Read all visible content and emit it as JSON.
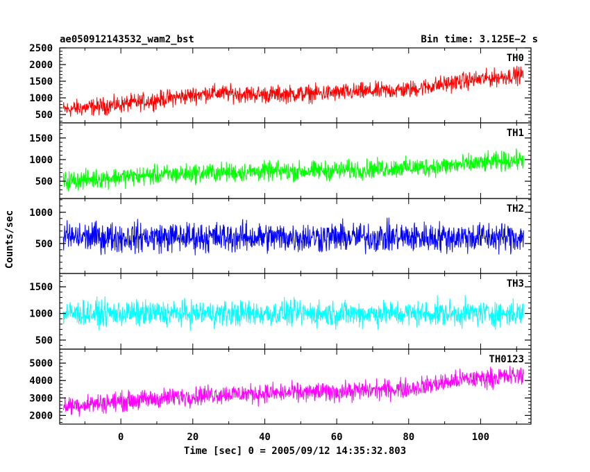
{
  "header": {
    "title": "ae050912143532_wam2_bst",
    "bin_time": "Bin time: 3.125E−2 s"
  },
  "chart_data": {
    "type": "line",
    "xlabel": "Time [sec] 0 = 2005/09/12 14:35:32.803",
    "ylabel": "Counts/sec",
    "xlim": [
      -17,
      114
    ],
    "x_ticks": [
      0,
      20,
      40,
      60,
      80,
      100
    ],
    "x_tick_labels": [
      "0",
      "20",
      "40",
      "60",
      "80",
      "100"
    ],
    "x_range": [
      -16,
      112
    ],
    "panels": [
      {
        "name": "TH0",
        "color": "#ff0000",
        "ylim": [
          250,
          2500
        ],
        "y_ticks": [
          500,
          1000,
          1500,
          2000,
          2500
        ],
        "y_tick_labels": [
          "500",
          "1000",
          "1500",
          "2000",
          "2500"
        ],
        "trend_x": [
          -16,
          0,
          25,
          40,
          60,
          80,
          95,
          112
        ],
        "trend_y": [
          650,
          800,
          1150,
          1100,
          1150,
          1250,
          1500,
          1700
        ],
        "spread": 700,
        "y_min": 250,
        "y_max": 2450
      },
      {
        "name": "TH1",
        "color": "#00ff00",
        "ylim": [
          100,
          1850
        ],
        "y_ticks": [
          500,
          1000,
          1500
        ],
        "y_tick_labels": [
          "500",
          "1000",
          "1500"
        ],
        "trend_x": [
          -16,
          0,
          25,
          60,
          90,
          112
        ],
        "trend_y": [
          500,
          600,
          700,
          750,
          850,
          1000
        ],
        "spread": 600,
        "y_min": 100,
        "y_max": 1850
      },
      {
        "name": "TH2",
        "color": "#0000ff",
        "ylim": [
          20,
          1220
        ],
        "y_ticks": [
          500,
          1000
        ],
        "y_tick_labels": [
          "500",
          "1000"
        ],
        "trend_x": [
          -16,
          112
        ],
        "trend_y": [
          600,
          600
        ],
        "spread": 650,
        "y_min": 50,
        "y_max": 1220
      },
      {
        "name": "TH3",
        "color": "#00ffff",
        "ylim": [
          330,
          1750
        ],
        "y_ticks": [
          500,
          1000,
          1500
        ],
        "y_tick_labels": [
          "500",
          "1000",
          "1500"
        ],
        "trend_x": [
          -16,
          112
        ],
        "trend_y": [
          1000,
          1000
        ],
        "spread": 650,
        "y_min": 400,
        "y_max": 1750
      },
      {
        "name": "TH0123",
        "color": "#ff00ff",
        "ylim": [
          1500,
          5800
        ],
        "y_ticks": [
          2000,
          3000,
          4000,
          5000
        ],
        "y_tick_labels": [
          "2000",
          "3000",
          "4000",
          "5000"
        ],
        "trend_x": [
          -16,
          0,
          25,
          60,
          80,
          95,
          112
        ],
        "trend_y": [
          2550,
          2800,
          3200,
          3350,
          3550,
          4050,
          4300
        ],
        "spread": 1500,
        "y_min": 1550,
        "y_max": 5800
      }
    ]
  }
}
